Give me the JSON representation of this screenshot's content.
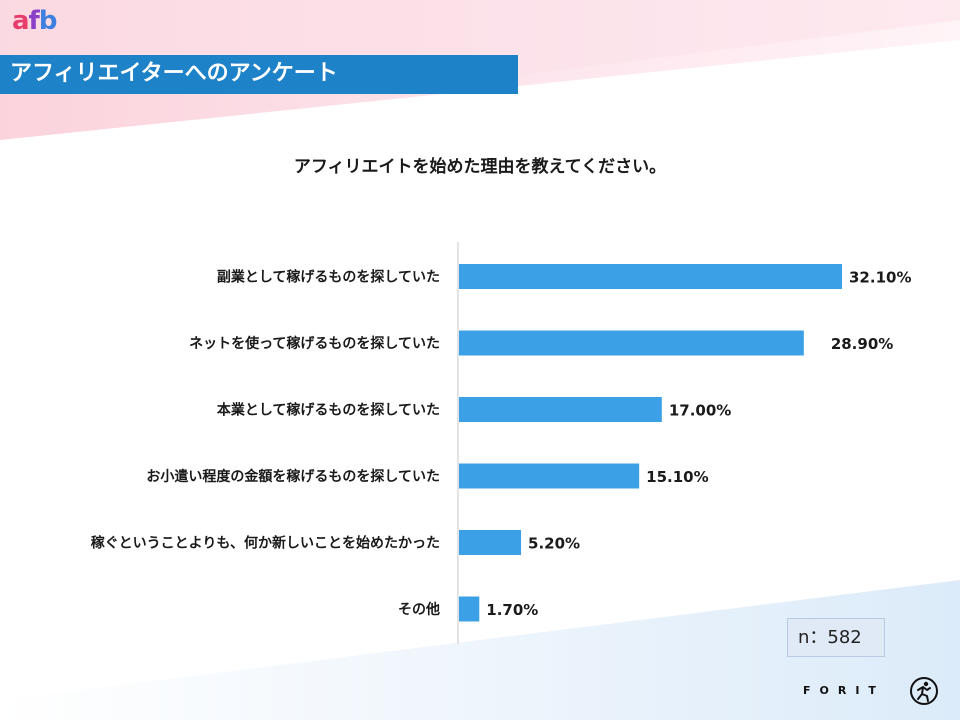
{
  "logo": {
    "a": "a",
    "f": "f",
    "b": "b"
  },
  "header": {
    "title": "アフィリエイターへのアンケート"
  },
  "question": "アフィリエイトを始めた理由を教えてください。",
  "sample": {
    "label": "n：582"
  },
  "footer": {
    "brand": "FORIT",
    "icon": "runner-logo-icon"
  },
  "colors": {
    "bar": "#3ba0e6",
    "title_band": "#1e82c8",
    "axis": "#c8c8c8"
  },
  "chart_data": {
    "type": "bar",
    "orientation": "horizontal",
    "title": "アフィリエイトを始めた理由を教えてください。",
    "categories": [
      "副業として稼げるものを探していた",
      "ネットを使って稼げるものを探していた",
      "本業として稼げるものを探していた",
      "お小遣い程度の金額を稼げるものを探していた",
      "稼ぐということよりも、何か新しいことを始めたかった",
      "その他"
    ],
    "values": [
      32.1,
      28.9,
      17.0,
      15.1,
      5.2,
      1.7
    ],
    "value_labels": [
      "32.10%",
      "28.90%",
      "17.00%",
      "15.10%",
      "5.20%",
      "1.70%"
    ],
    "xlim": [
      0,
      32.1
    ],
    "grid": false
  }
}
